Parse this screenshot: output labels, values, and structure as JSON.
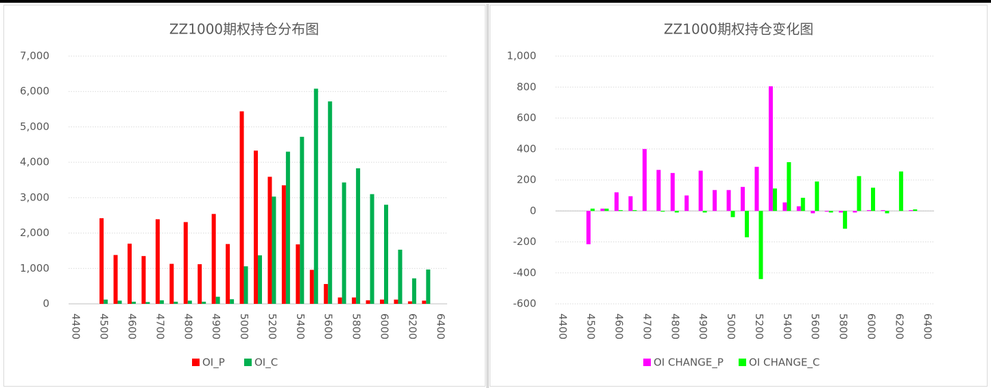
{
  "chart_data": [
    {
      "type": "bar",
      "title": "ZZ1000期权持仓分布图",
      "categories": [
        "4400",
        null,
        "4500",
        null,
        "4600",
        null,
        "4700",
        null,
        "4800",
        null,
        "4900",
        null,
        "5000",
        null,
        "5200",
        null,
        "5400",
        null,
        "5600",
        null,
        "5800",
        null,
        "6000",
        null,
        "6200",
        null,
        "6400"
      ],
      "series": [
        {
          "name": "OI_P",
          "color": "#ff0000",
          "values": [
            null,
            null,
            2420,
            1380,
            1700,
            1350,
            2390,
            1130,
            2310,
            1120,
            2540,
            1690,
            5440,
            4330,
            3590,
            3350,
            1680,
            960,
            560,
            180,
            180,
            100,
            120,
            120,
            70,
            90,
            null
          ]
        },
        {
          "name": "OI_C",
          "color": "#00b050",
          "values": [
            null,
            null,
            120,
            90,
            60,
            50,
            100,
            60,
            90,
            60,
            200,
            130,
            1060,
            1370,
            3030,
            4300,
            4720,
            6080,
            5720,
            3430,
            3830,
            3100,
            2800,
            1530,
            720,
            970,
            null
          ]
        }
      ],
      "ylim": [
        0,
        7000
      ],
      "yticks": [
        0,
        {
          "value": 1000,
          "label": "1,000"
        },
        {
          "value": 2000,
          "label": "2,000"
        },
        {
          "value": 3000,
          "label": "3,000"
        },
        {
          "value": 4000,
          "label": "4,000"
        },
        {
          "value": 5000,
          "label": "5,000"
        },
        {
          "value": 6000,
          "label": "6,000"
        },
        {
          "value": 7000,
          "label": "7,000"
        }
      ],
      "grid": true,
      "legend": "bottom"
    },
    {
      "type": "bar",
      "title": "ZZ1000期权持仓变化图",
      "categories": [
        "4400",
        null,
        "4500",
        null,
        "4600",
        null,
        "4700",
        null,
        "4800",
        null,
        "4900",
        null,
        "5000",
        null,
        "5200",
        null,
        "5400",
        null,
        "5600",
        null,
        "5800",
        null,
        "6000",
        null,
        "6200",
        null,
        "6400"
      ],
      "series": [
        {
          "name": "OI CHANGE_P",
          "color": "#ff00ff",
          "values": [
            null,
            null,
            -215,
            15,
            120,
            95,
            400,
            265,
            245,
            100,
            260,
            135,
            135,
            155,
            285,
            805,
            55,
            30,
            -15,
            -5,
            -10,
            -10,
            5,
            5,
            0,
            5,
            null
          ]
        },
        {
          "name": "OI CHANGE_C",
          "color": "#00ff00",
          "values": [
            null,
            null,
            15,
            15,
            5,
            5,
            0,
            -5,
            -10,
            0,
            -10,
            0,
            -40,
            -170,
            -440,
            145,
            315,
            85,
            190,
            -10,
            -115,
            225,
            150,
            -15,
            255,
            10,
            null
          ]
        }
      ],
      "ylim": [
        -600,
        1000
      ],
      "yticks": [
        -600,
        -400,
        -200,
        0,
        200,
        400,
        600,
        800,
        {
          "value": 1000,
          "label": "1,000"
        }
      ],
      "grid": true,
      "legend": "bottom"
    }
  ]
}
